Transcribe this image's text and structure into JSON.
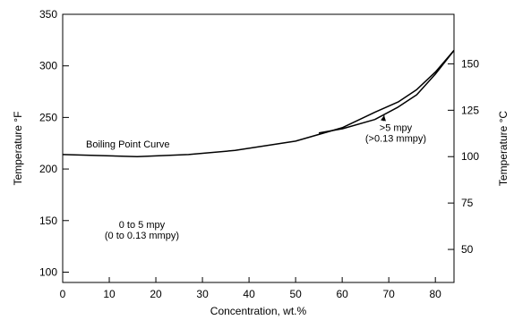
{
  "chart_data": {
    "type": "line",
    "xlabel": "Concentration, wt.%",
    "ylabel": "Temperature °F",
    "y2label": "Temperature °C",
    "xlim": [
      0,
      84
    ],
    "ylim": [
      90,
      350
    ],
    "y2lim": [
      32.2,
      176.7
    ],
    "x_ticks": [
      0,
      10,
      20,
      30,
      40,
      50,
      60,
      70,
      80
    ],
    "y_ticks": [
      100,
      150,
      200,
      250,
      300,
      350
    ],
    "y2_ticks": [
      50,
      75,
      100,
      125,
      150
    ],
    "grid": false,
    "series": [
      {
        "name": "Boiling Point Curve",
        "x": [
          0,
          16,
          27,
          37,
          50,
          60,
          67,
          72,
          76,
          80,
          84
        ],
        "y": [
          214,
          212,
          214,
          218,
          227,
          240,
          255,
          265,
          277,
          294,
          315
        ]
      },
      {
        "name": "",
        "x": [
          55,
          60,
          67,
          72,
          76,
          80,
          84
        ],
        "y": [
          235,
          239,
          248,
          260,
          272,
          292,
          315
        ]
      }
    ],
    "annotations": [
      {
        "id": "boiling",
        "lines": [
          "Boiling Point Curve"
        ],
        "x": 5,
        "y": 221
      },
      {
        "id": "mpy_high",
        "lines": [
          ">5 mpy",
          "(>0.13 mmpy)"
        ],
        "x": 71.5,
        "y": 237,
        "arrow_to": [
          69,
          252
        ]
      },
      {
        "id": "mpy_low",
        "lines": [
          "0 to 5 mpy",
          "(0 to 0.13 mmpy)"
        ],
        "x": 17,
        "y": 143
      }
    ]
  }
}
